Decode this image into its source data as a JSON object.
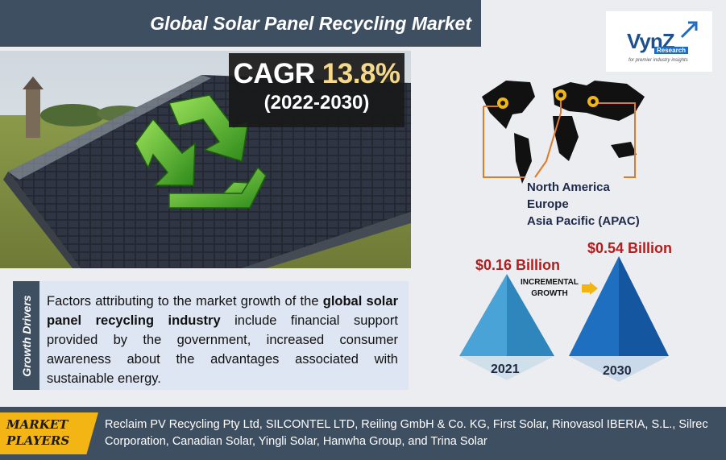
{
  "header": {
    "title": "Global Solar Panel Recycling Market"
  },
  "cagr": {
    "label": "CAGR",
    "value": "13.8%",
    "period": "(2022-2030)"
  },
  "logo": {
    "word": "VynZ",
    "sub": "Research",
    "tagline": "for premier industry insights"
  },
  "regions": [
    "North America",
    "Europe",
    "Asia Pacific (APAC)"
  ],
  "market": {
    "value_2021": "$0.16 Billion",
    "value_2030": "$0.54 Billion",
    "incremental_line1": "INCREMENTAL",
    "incremental_line2": "GROWTH",
    "year_start": "2021",
    "year_end": "2030"
  },
  "growth_drivers": {
    "tab_label": "Growth Drivers",
    "text_before": "Factors attributing to the market growth of the ",
    "text_bold": "global solar panel recycling industry",
    "text_after": " include financial support provided by the government, increased consumer awareness about the advantages associated with sustainable energy."
  },
  "market_players": {
    "tab_line1": "MARKET",
    "tab_line2": "PLAYERS",
    "text": "Reclaim PV Recycling Pty Ltd, SILCONTEL LTD, Reiling GmbH & Co. KG, First Solar, Rinovasol IBERIA, S.L., Silrec Corporation, Canadian Solar, Yingli Solar, Hanwha Group, and Trina Solar"
  },
  "colors": {
    "header_bg": "#3e4f62",
    "accent_gold": "#f2b514",
    "value_red": "#b21e1e",
    "pyramid_light": "#4aa3d6",
    "pyramid_dark": "#1f6fc0"
  },
  "icons": [
    "recycle-icon",
    "location-pin-icon",
    "arrow-right-icon",
    "logo-arrow-icon"
  ]
}
